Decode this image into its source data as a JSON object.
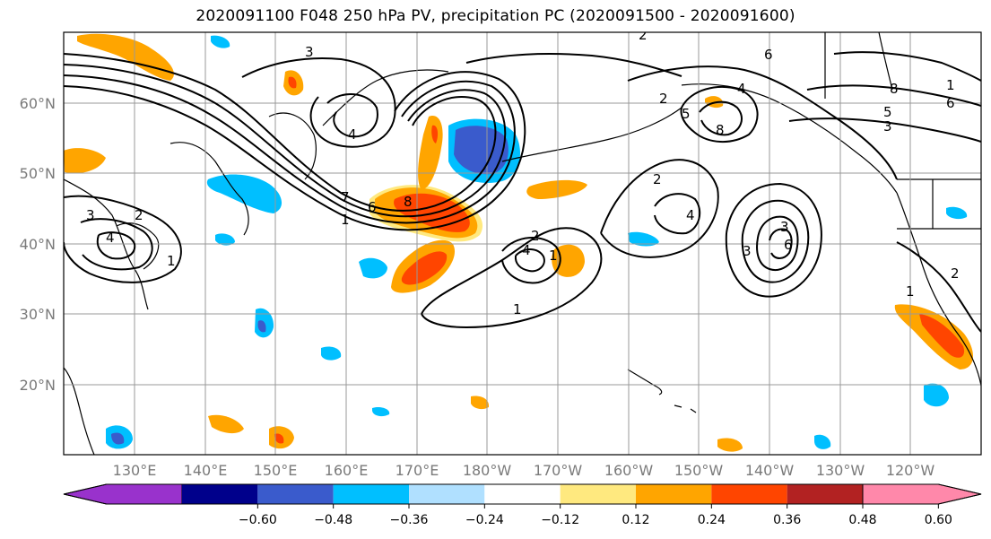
{
  "title": "2020091100 F048 250 hPa PV, precipitation PC (2020091500 - 2020091600)",
  "lat_labels": [
    "60°N",
    "50°N",
    "40°N",
    "30°N",
    "20°N"
  ],
  "lon_labels": [
    "130°E",
    "140°E",
    "150°E",
    "160°E",
    "170°E",
    "180°W",
    "170°W",
    "160°W",
    "150°W",
    "140°W",
    "130°W",
    "120°W"
  ],
  "colorbar": {
    "colors": [
      "#9932cc",
      "#00008b",
      "#3a5bcc",
      "#00bfff",
      "#b0e0ff",
      "#ffffff",
      "#ffe97f",
      "#ffa500",
      "#ff4500",
      "#b22222",
      "#ff88aa"
    ],
    "ticks": [
      "−0.60",
      "−0.48",
      "−0.36",
      "−0.24",
      "−0.12",
      "0.12",
      "0.24",
      "0.36",
      "0.48",
      "0.60"
    ]
  },
  "contour_labels": [
    "3",
    "2",
    "6",
    "8",
    "4",
    "5",
    "6",
    "2",
    "8",
    "5",
    "3",
    "1",
    "4",
    "2",
    "7",
    "6",
    "8",
    "1",
    "3",
    "4",
    "1",
    "2",
    "1",
    "4",
    "1",
    "2",
    "4",
    "3",
    "6",
    "3",
    "2",
    "1"
  ]
}
